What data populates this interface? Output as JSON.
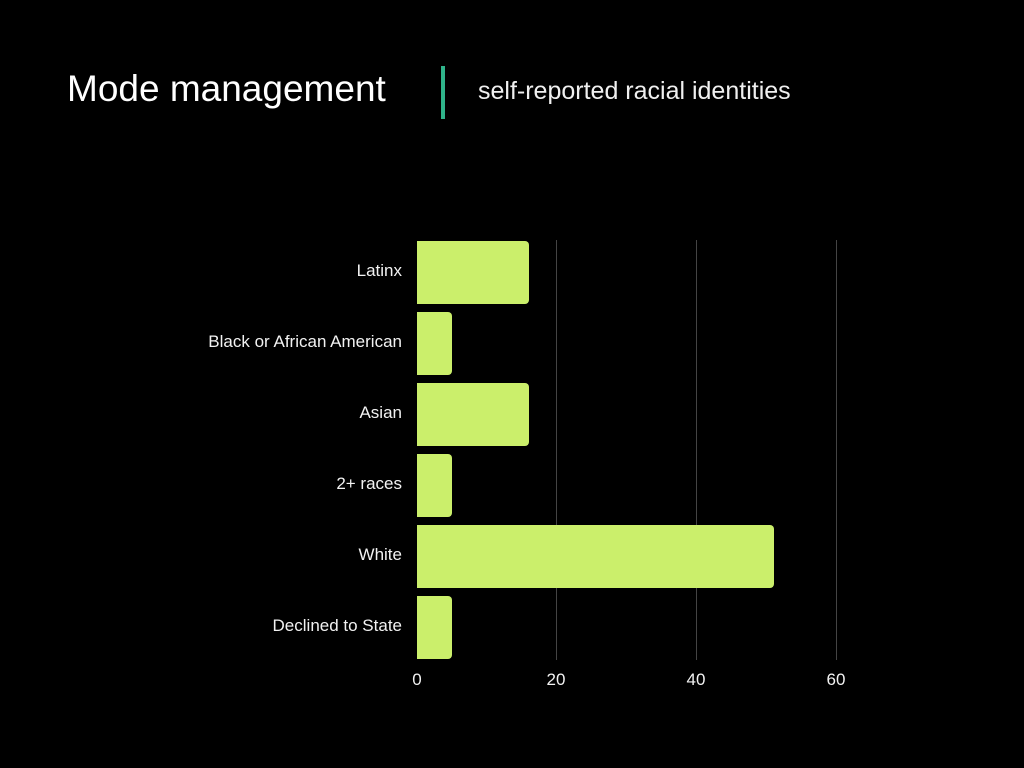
{
  "header": {
    "title": "Mode management",
    "subtitle": "self-reported racial identities",
    "divider_color": "#2fb38a"
  },
  "chart_data": {
    "type": "bar",
    "orientation": "horizontal",
    "title": "Mode management",
    "subtitle": "self-reported racial identities",
    "categories": [
      "Latinx",
      "Black or African American",
      "Asian",
      "2+ races",
      "White",
      "Declined to State"
    ],
    "values": [
      16,
      5,
      16,
      5,
      51,
      5
    ],
    "xlabel": "",
    "ylabel": "",
    "xlim": [
      0,
      60
    ],
    "xticks": [
      0,
      20,
      40,
      60
    ],
    "grid": true,
    "legend": null,
    "bar_color": "#cbef6b"
  },
  "axis": {
    "ticks": [
      "0",
      "20",
      "40",
      "60"
    ]
  }
}
